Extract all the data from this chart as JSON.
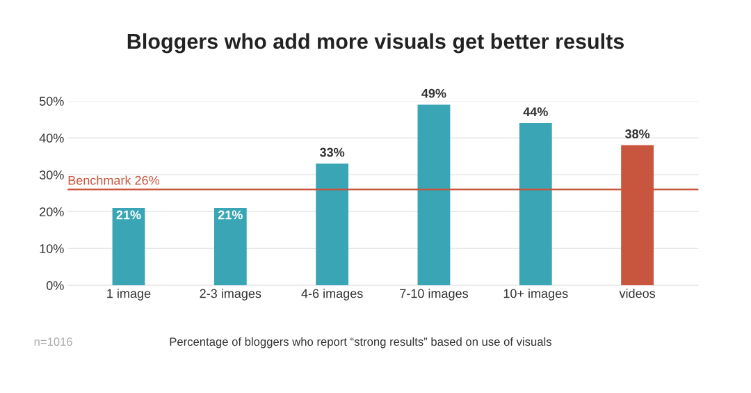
{
  "chart_data": {
    "type": "bar",
    "title": "Bloggers who add more visuals get better results",
    "categories": [
      "1 image",
      "2-3 images",
      "4-6 images",
      "7-10 images",
      "10+ images",
      "videos"
    ],
    "values": [
      21,
      21,
      33,
      49,
      44,
      38
    ],
    "colors": [
      "#3aa6b5",
      "#3aa6b5",
      "#3aa6b5",
      "#3aa6b5",
      "#3aa6b5",
      "#c8553d"
    ],
    "value_labels": [
      "21%",
      "21%",
      "33%",
      "49%",
      "44%",
      "38%"
    ],
    "ylim": [
      0,
      50
    ],
    "yticks": [
      {
        "value": 0,
        "label": "0%"
      },
      {
        "value": 10,
        "label": "10%"
      },
      {
        "value": 20,
        "label": "20%"
      },
      {
        "value": 30,
        "label": "30%"
      },
      {
        "value": 40,
        "label": "40%"
      },
      {
        "value": 50,
        "label": "50%"
      }
    ],
    "grid": "y",
    "ref_lines": [
      {
        "axis": "y",
        "value": 26,
        "label": "Benchmark 26%",
        "color": "#c8553d",
        "line_style": "solid"
      }
    ],
    "annotations": [
      "n=1016",
      "Percentage of bloggers who report “strong results” based on use of visuals"
    ]
  }
}
